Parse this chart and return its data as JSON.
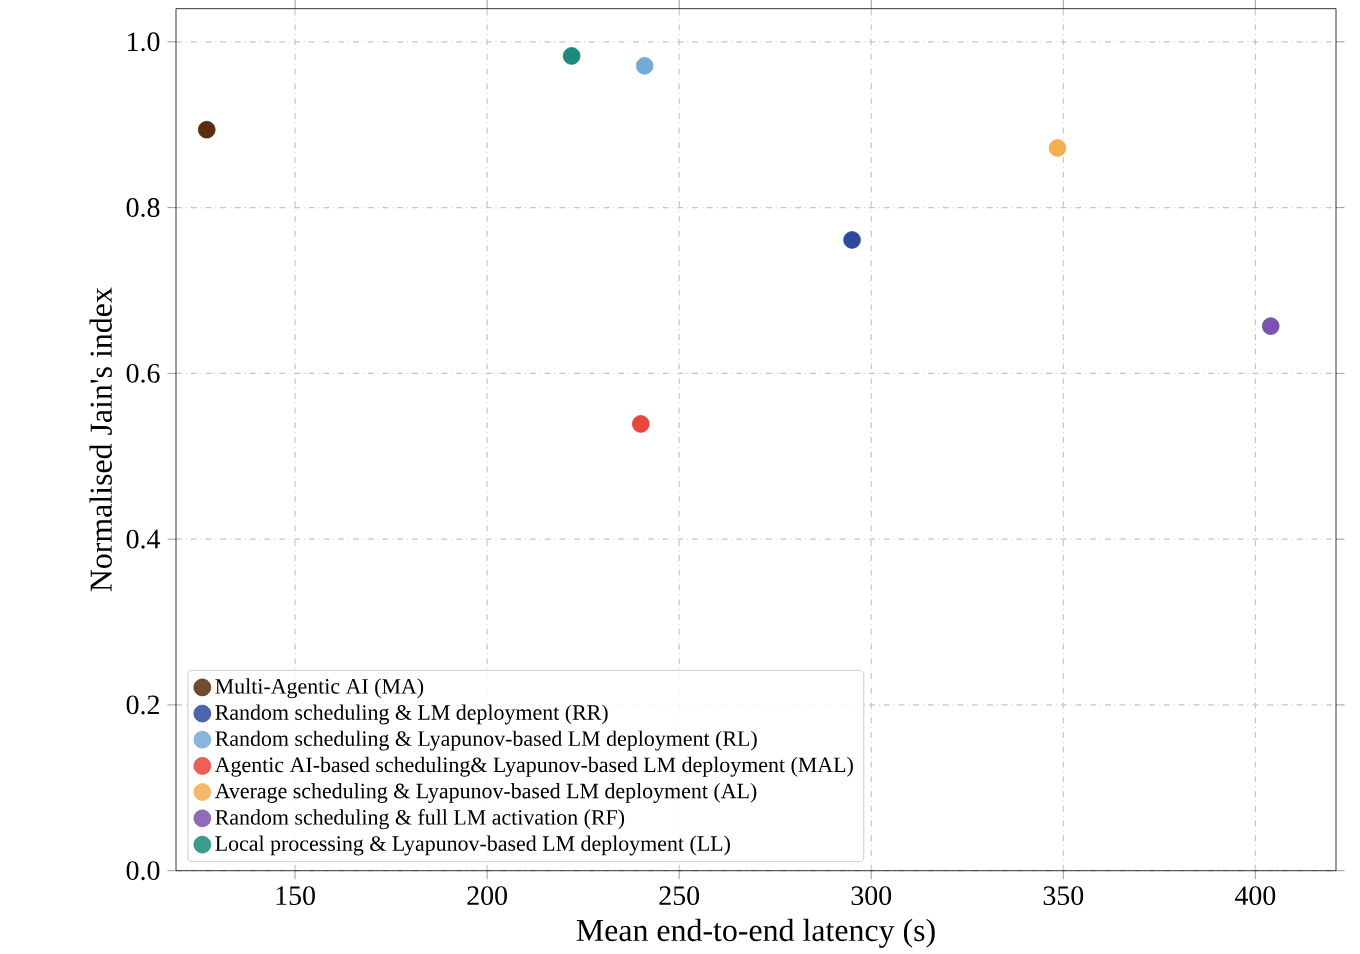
{
  "chart_data": {
    "type": "scatter",
    "xlabel": "Mean end-to-end latency (s)",
    "ylabel": "Normalised Jain's index",
    "xlim": [
      119,
      421
    ],
    "xticks": [
      150,
      200,
      250,
      300,
      350,
      400
    ],
    "ylim": [
      0,
      1.04
    ],
    "yticks": [
      {
        "value": 0,
        "label": "0.0"
      },
      0.2,
      0.4,
      0.6,
      0.8,
      {
        "value": 1,
        "label": "1.0"
      }
    ],
    "grid": true,
    "legend": "bottom left",
    "series": [
      {
        "name": "Multi-Agentic AI (MA)",
        "color": "#5a2d0c",
        "x": [
          127
        ],
        "values": [
          0.894
        ]
      },
      {
        "name": "Random scheduling & LM deployment (RR)",
        "color": "#2e4a9e",
        "x": [
          295
        ],
        "values": [
          0.761
        ]
      },
      {
        "name": "Random scheduling & Lyapunov-based LM deployment (RL)",
        "color": "#74a9d8",
        "x": [
          241
        ],
        "values": [
          0.971
        ]
      },
      {
        "name": "Agentic AI-based scheduling& Lyapunov-based LM deployment (MAL)",
        "color": "#e8453c",
        "x": [
          240
        ],
        "values": [
          0.539
        ]
      },
      {
        "name": "Average scheduling & Lyapunov-based LM deployment (AL)",
        "color": "#f5ad52",
        "x": [
          348.5
        ],
        "values": [
          0.872
        ]
      },
      {
        "name": "Random scheduling & full LM activation (RF)",
        "color": "#7b52ae",
        "x": [
          404
        ],
        "values": [
          0.657
        ]
      },
      {
        "name": "Local processing & Lyapunov-based LM deployment (LL)",
        "color": "#1a8a7a",
        "x": [
          222
        ],
        "values": [
          0.983
        ]
      }
    ]
  }
}
